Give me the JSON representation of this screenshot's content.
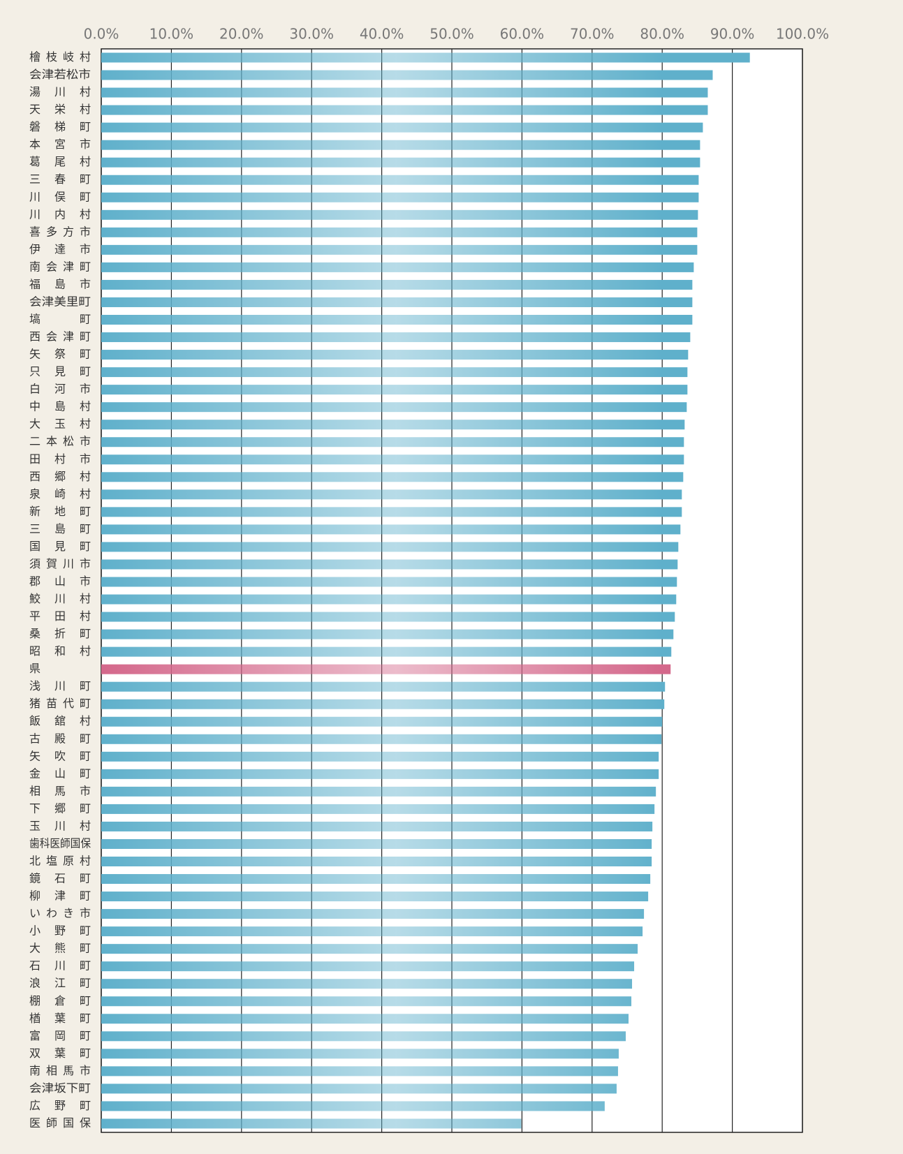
{
  "chart_data": {
    "type": "barh",
    "categories": [
      "檜枝岐村",
      "会津若松市",
      "湯川村",
      "天栄村",
      "磐梯町",
      "本宮市",
      "葛尾村",
      "三春町",
      "川俣町",
      "川内村",
      "喜多方市",
      "伊達市",
      "南会津町",
      "福島市",
      "会津美里町",
      "塙町",
      "西会津町",
      "矢祭町",
      "只見町",
      "白河市",
      "中島村",
      "大玉村",
      "二本松市",
      "田村市",
      "西郷村",
      "泉崎村",
      "新地町",
      "三島町",
      "国見町",
      "須賀川市",
      "郡山市",
      "鮫川村",
      "平田村",
      "桑折町",
      "昭和村",
      "県",
      "浅川町",
      "猪苗代町",
      "飯舘村",
      "古殿町",
      "矢吹町",
      "金山町",
      "相馬市",
      "下郷町",
      "玉川村",
      "歯科医師国保",
      "北塩原村",
      "鏡石町",
      "柳津町",
      "いわき市",
      "小野町",
      "大熊町",
      "石川町",
      "浪江町",
      "棚倉町",
      "楢葉町",
      "富岡町",
      "双葉町",
      "南相馬市",
      "会津坂下町",
      "広野町",
      "医師国保"
    ],
    "values": [
      92.5,
      87.2,
      86.5,
      86.5,
      85.8,
      85.4,
      85.4,
      85.2,
      85.2,
      85.1,
      85.0,
      85.0,
      84.5,
      84.3,
      84.3,
      84.3,
      84.0,
      83.7,
      83.6,
      83.6,
      83.5,
      83.2,
      83.1,
      83.1,
      83.0,
      82.8,
      82.8,
      82.6,
      82.3,
      82.2,
      82.1,
      82.0,
      81.8,
      81.6,
      81.3,
      81.2,
      80.4,
      80.3,
      80.0,
      79.9,
      79.5,
      79.5,
      79.1,
      78.9,
      78.6,
      78.5,
      78.5,
      78.3,
      78.0,
      77.4,
      77.2,
      76.5,
      76.0,
      75.7,
      75.6,
      75.2,
      74.8,
      73.8,
      73.7,
      73.5,
      71.8,
      59.9
    ],
    "colors": [
      "#5fb0cb",
      "#5fb0cb",
      "#5fb0cb",
      "#5fb0cb",
      "#5fb0cb",
      "#5fb0cb",
      "#5fb0cb",
      "#5fb0cb",
      "#5fb0cb",
      "#5fb0cb",
      "#5fb0cb",
      "#5fb0cb",
      "#5fb0cb",
      "#5fb0cb",
      "#5fb0cb",
      "#5fb0cb",
      "#5fb0cb",
      "#5fb0cb",
      "#5fb0cb",
      "#5fb0cb",
      "#5fb0cb",
      "#5fb0cb",
      "#5fb0cb",
      "#5fb0cb",
      "#5fb0cb",
      "#5fb0cb",
      "#5fb0cb",
      "#5fb0cb",
      "#5fb0cb",
      "#5fb0cb",
      "#5fb0cb",
      "#5fb0cb",
      "#5fb0cb",
      "#5fb0cb",
      "#5fb0cb",
      "#d4688b",
      "#5fb0cb",
      "#5fb0cb",
      "#5fb0cb",
      "#5fb0cb",
      "#5fb0cb",
      "#5fb0cb",
      "#5fb0cb",
      "#5fb0cb",
      "#5fb0cb",
      "#5fb0cb",
      "#5fb0cb",
      "#5fb0cb",
      "#5fb0cb",
      "#5fb0cb",
      "#5fb0cb",
      "#5fb0cb",
      "#5fb0cb",
      "#5fb0cb",
      "#5fb0cb",
      "#5fb0cb",
      "#5fb0cb",
      "#5fb0cb",
      "#5fb0cb",
      "#5fb0cb",
      "#5fb0cb",
      "#5fb0cb"
    ],
    "xlim": [
      0,
      100
    ],
    "xticks": [
      {
        "value": 0,
        "label": "0.0%"
      },
      {
        "value": 10,
        "label": "10.0%"
      },
      {
        "value": 20,
        "label": "20.0%"
      },
      {
        "value": 30,
        "label": "30.0%"
      },
      {
        "value": 40,
        "label": "40.0%"
      },
      {
        "value": 50,
        "label": "50.0%"
      },
      {
        "value": 60,
        "label": "60.0%"
      },
      {
        "value": 70,
        "label": "70.0%"
      },
      {
        "value": 80,
        "label": "80.0%"
      },
      {
        "value": 90,
        "label": "90.0%"
      },
      {
        "value": 100,
        "label": "100.0%"
      }
    ],
    "grid": true
  }
}
